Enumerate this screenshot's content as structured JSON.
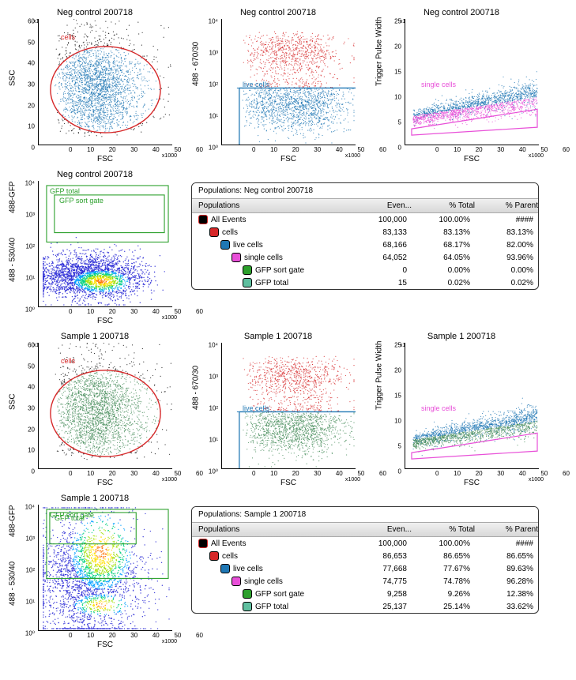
{
  "samples": [
    {
      "name": "Neg control 200718",
      "plots": {
        "cells": {
          "title": "Neg control 200718",
          "ylabel": "SSC",
          "xlabel": "FSC",
          "yscale_note": "x1000",
          "xscale_note": "x1000",
          "xticks": [
            "0",
            "10",
            "20",
            "30",
            "40",
            "50",
            "60"
          ],
          "yticks": [
            "0",
            "10",
            "20",
            "30",
            "40",
            "50",
            "60"
          ],
          "gate_label": "cells",
          "gate_color": "#d62728",
          "colors": {
            "out": "#000000",
            "in": "#1f77b4"
          }
        },
        "live": {
          "title": "Neg control 200718",
          "ylabel": "488 - 670/30",
          "xlabel": "FSC",
          "xscale_note": "x1000",
          "xticks": [
            "0",
            "10",
            "20",
            "30",
            "40",
            "50",
            "60"
          ],
          "yticks_log": [
            "10⁰",
            "10¹",
            "10²",
            "10³",
            "10⁴"
          ],
          "gate_label": "live cells",
          "gate_color": "#1f77b4",
          "colors": {
            "out": "#d62728",
            "in": "#1f77b4"
          }
        },
        "single": {
          "title": "Neg control 200718",
          "ylabel": "Trigger Pulse Width",
          "xlabel": "FSC",
          "yscale_note": "x1000",
          "xscale_note": "x1000",
          "xticks": [
            "0",
            "10",
            "20",
            "30",
            "40",
            "50",
            "60"
          ],
          "yticks": [
            "0",
            "5",
            "10",
            "15",
            "20",
            "25"
          ],
          "gate_label": "single cells",
          "gate_color": "#e84fd8",
          "colors": {
            "out": "#1f77b4",
            "in": "#e84fd8"
          }
        },
        "gfp": {
          "title": "Neg control 200718",
          "ylabel": "488 - 530/40",
          "ylabel2": "488-GFP",
          "xlabel": "FSC",
          "xscale_note": "x1000",
          "xticks": [
            "0",
            "10",
            "20",
            "30",
            "40",
            "50",
            "60"
          ],
          "yticks_log": [
            "10⁰",
            "10¹",
            "10²",
            "10³",
            "10⁴"
          ],
          "gate_label1": "GFP total",
          "gate_label2": "GFP sort gate",
          "gate_color": "#2ca02c",
          "density_palette": [
            "#2b2bd6",
            "#00a0ff",
            "#00d080",
            "#a0e000",
            "#ffe000",
            "#ff7000",
            "#ff0000"
          ]
        }
      },
      "populations": {
        "title": "Populations: Neg control 200718",
        "headers": [
          "Populations",
          "Even...",
          "% Total",
          "% Parent"
        ],
        "rows": [
          {
            "indent": 0,
            "swatch": "#000000",
            "swatch_border": "#d62728",
            "label": "All Events",
            "events": "100,000",
            "pct_total": "100.00%",
            "pct_parent": "####"
          },
          {
            "indent": 1,
            "swatch": "#d62728",
            "label": "cells",
            "events": "83,133",
            "pct_total": "83.13%",
            "pct_parent": "83.13%"
          },
          {
            "indent": 2,
            "swatch": "#1f77b4",
            "label": "live cells",
            "events": "68,166",
            "pct_total": "68.17%",
            "pct_parent": "82.00%"
          },
          {
            "indent": 3,
            "swatch": "#e84fd8",
            "label": "single cells",
            "events": "64,052",
            "pct_total": "64.05%",
            "pct_parent": "93.96%"
          },
          {
            "indent": 4,
            "swatch": "#2ca02c",
            "label": "GFP sort gate",
            "events": "0",
            "pct_total": "0.00%",
            "pct_parent": "0.00%"
          },
          {
            "indent": 4,
            "swatch": "#5fbf9f",
            "label": "GFP total",
            "events": "15",
            "pct_total": "0.02%",
            "pct_parent": "0.02%"
          }
        ]
      }
    },
    {
      "name": "Sample 1 200718",
      "plots": {
        "cells": {
          "title": "Sample 1 200718",
          "ylabel": "SSC",
          "xlabel": "FSC",
          "yscale_note": "x1000",
          "xscale_note": "x1000",
          "xticks": [
            "0",
            "10",
            "20",
            "30",
            "40",
            "50",
            "60"
          ],
          "yticks": [
            "0",
            "10",
            "20",
            "30",
            "40",
            "50",
            "60"
          ],
          "gate_label": "cells",
          "gate_color": "#d62728",
          "colors": {
            "out": "#000000",
            "in": "#468c5a"
          }
        },
        "live": {
          "title": "Sample 1 200718",
          "ylabel": "488 - 670/30",
          "xlabel": "FSC",
          "xscale_note": "x1000",
          "xticks": [
            "0",
            "10",
            "20",
            "30",
            "40",
            "50",
            "60"
          ],
          "yticks_log": [
            "10⁰",
            "10¹",
            "10²",
            "10³",
            "10⁴"
          ],
          "gate_label": "live cells",
          "gate_color": "#1f77b4",
          "colors": {
            "out": "#d62728",
            "in": "#468c5a"
          }
        },
        "single": {
          "title": "Sample 1 200718",
          "ylabel": "Trigger Pulse Width",
          "xlabel": "FSC",
          "yscale_note": "x1000",
          "xscale_note": "x1000",
          "xticks": [
            "0",
            "10",
            "20",
            "30",
            "40",
            "50",
            "60"
          ],
          "yticks": [
            "0",
            "5",
            "10",
            "15",
            "20",
            "25"
          ],
          "gate_label": "single cells",
          "gate_color": "#e84fd8",
          "colors": {
            "out": "#1f77b4",
            "in": "#468c5a"
          }
        },
        "gfp": {
          "title": "Sample 1 200718",
          "ylabel": "488 - 530/40",
          "ylabel2": "488-GFP",
          "xlabel": "FSC",
          "xscale_note": "x1000",
          "xticks": [
            "0",
            "10",
            "20",
            "30",
            "40",
            "50",
            "60"
          ],
          "yticks_log": [
            "10⁰",
            "10¹",
            "10²",
            "10³",
            "10⁴"
          ],
          "gate_label1": "GFP sort gate",
          "gate_label2": "GFP total",
          "gate_color": "#2ca02c",
          "density_palette": [
            "#2b2bd6",
            "#00a0ff",
            "#00d080",
            "#a0e000",
            "#ffe000",
            "#ff7000",
            "#ff0000"
          ]
        }
      },
      "populations": {
        "title": "Populations: Sample 1 200718",
        "headers": [
          "Populations",
          "Even...",
          "% Total",
          "% Parent"
        ],
        "rows": [
          {
            "indent": 0,
            "swatch": "#000000",
            "swatch_border": "#d62728",
            "label": "All Events",
            "events": "100,000",
            "pct_total": "100.00%",
            "pct_parent": "####"
          },
          {
            "indent": 1,
            "swatch": "#d62728",
            "label": "cells",
            "events": "86,653",
            "pct_total": "86.65%",
            "pct_parent": "86.65%"
          },
          {
            "indent": 2,
            "swatch": "#1f77b4",
            "label": "live cells",
            "events": "77,668",
            "pct_total": "77.67%",
            "pct_parent": "89.63%"
          },
          {
            "indent": 3,
            "swatch": "#e84fd8",
            "label": "single cells",
            "events": "74,775",
            "pct_total": "74.78%",
            "pct_parent": "96.28%"
          },
          {
            "indent": 4,
            "swatch": "#2ca02c",
            "label": "GFP sort gate",
            "events": "9,258",
            "pct_total": "9.26%",
            "pct_parent": "12.38%"
          },
          {
            "indent": 4,
            "swatch": "#5fbf9f",
            "label": "GFP total",
            "events": "25,137",
            "pct_total": "25.14%",
            "pct_parent": "33.62%"
          }
        ]
      }
    }
  ],
  "styling": {
    "background_color": "#ffffff",
    "axis_color": "#000000",
    "tick_fontsize": 8,
    "title_fontsize": 11,
    "label_fontsize": 10,
    "table_header_bg": "linear-gradient(#f0f0f0,#d8d8d8)",
    "table_border": "#333333"
  }
}
